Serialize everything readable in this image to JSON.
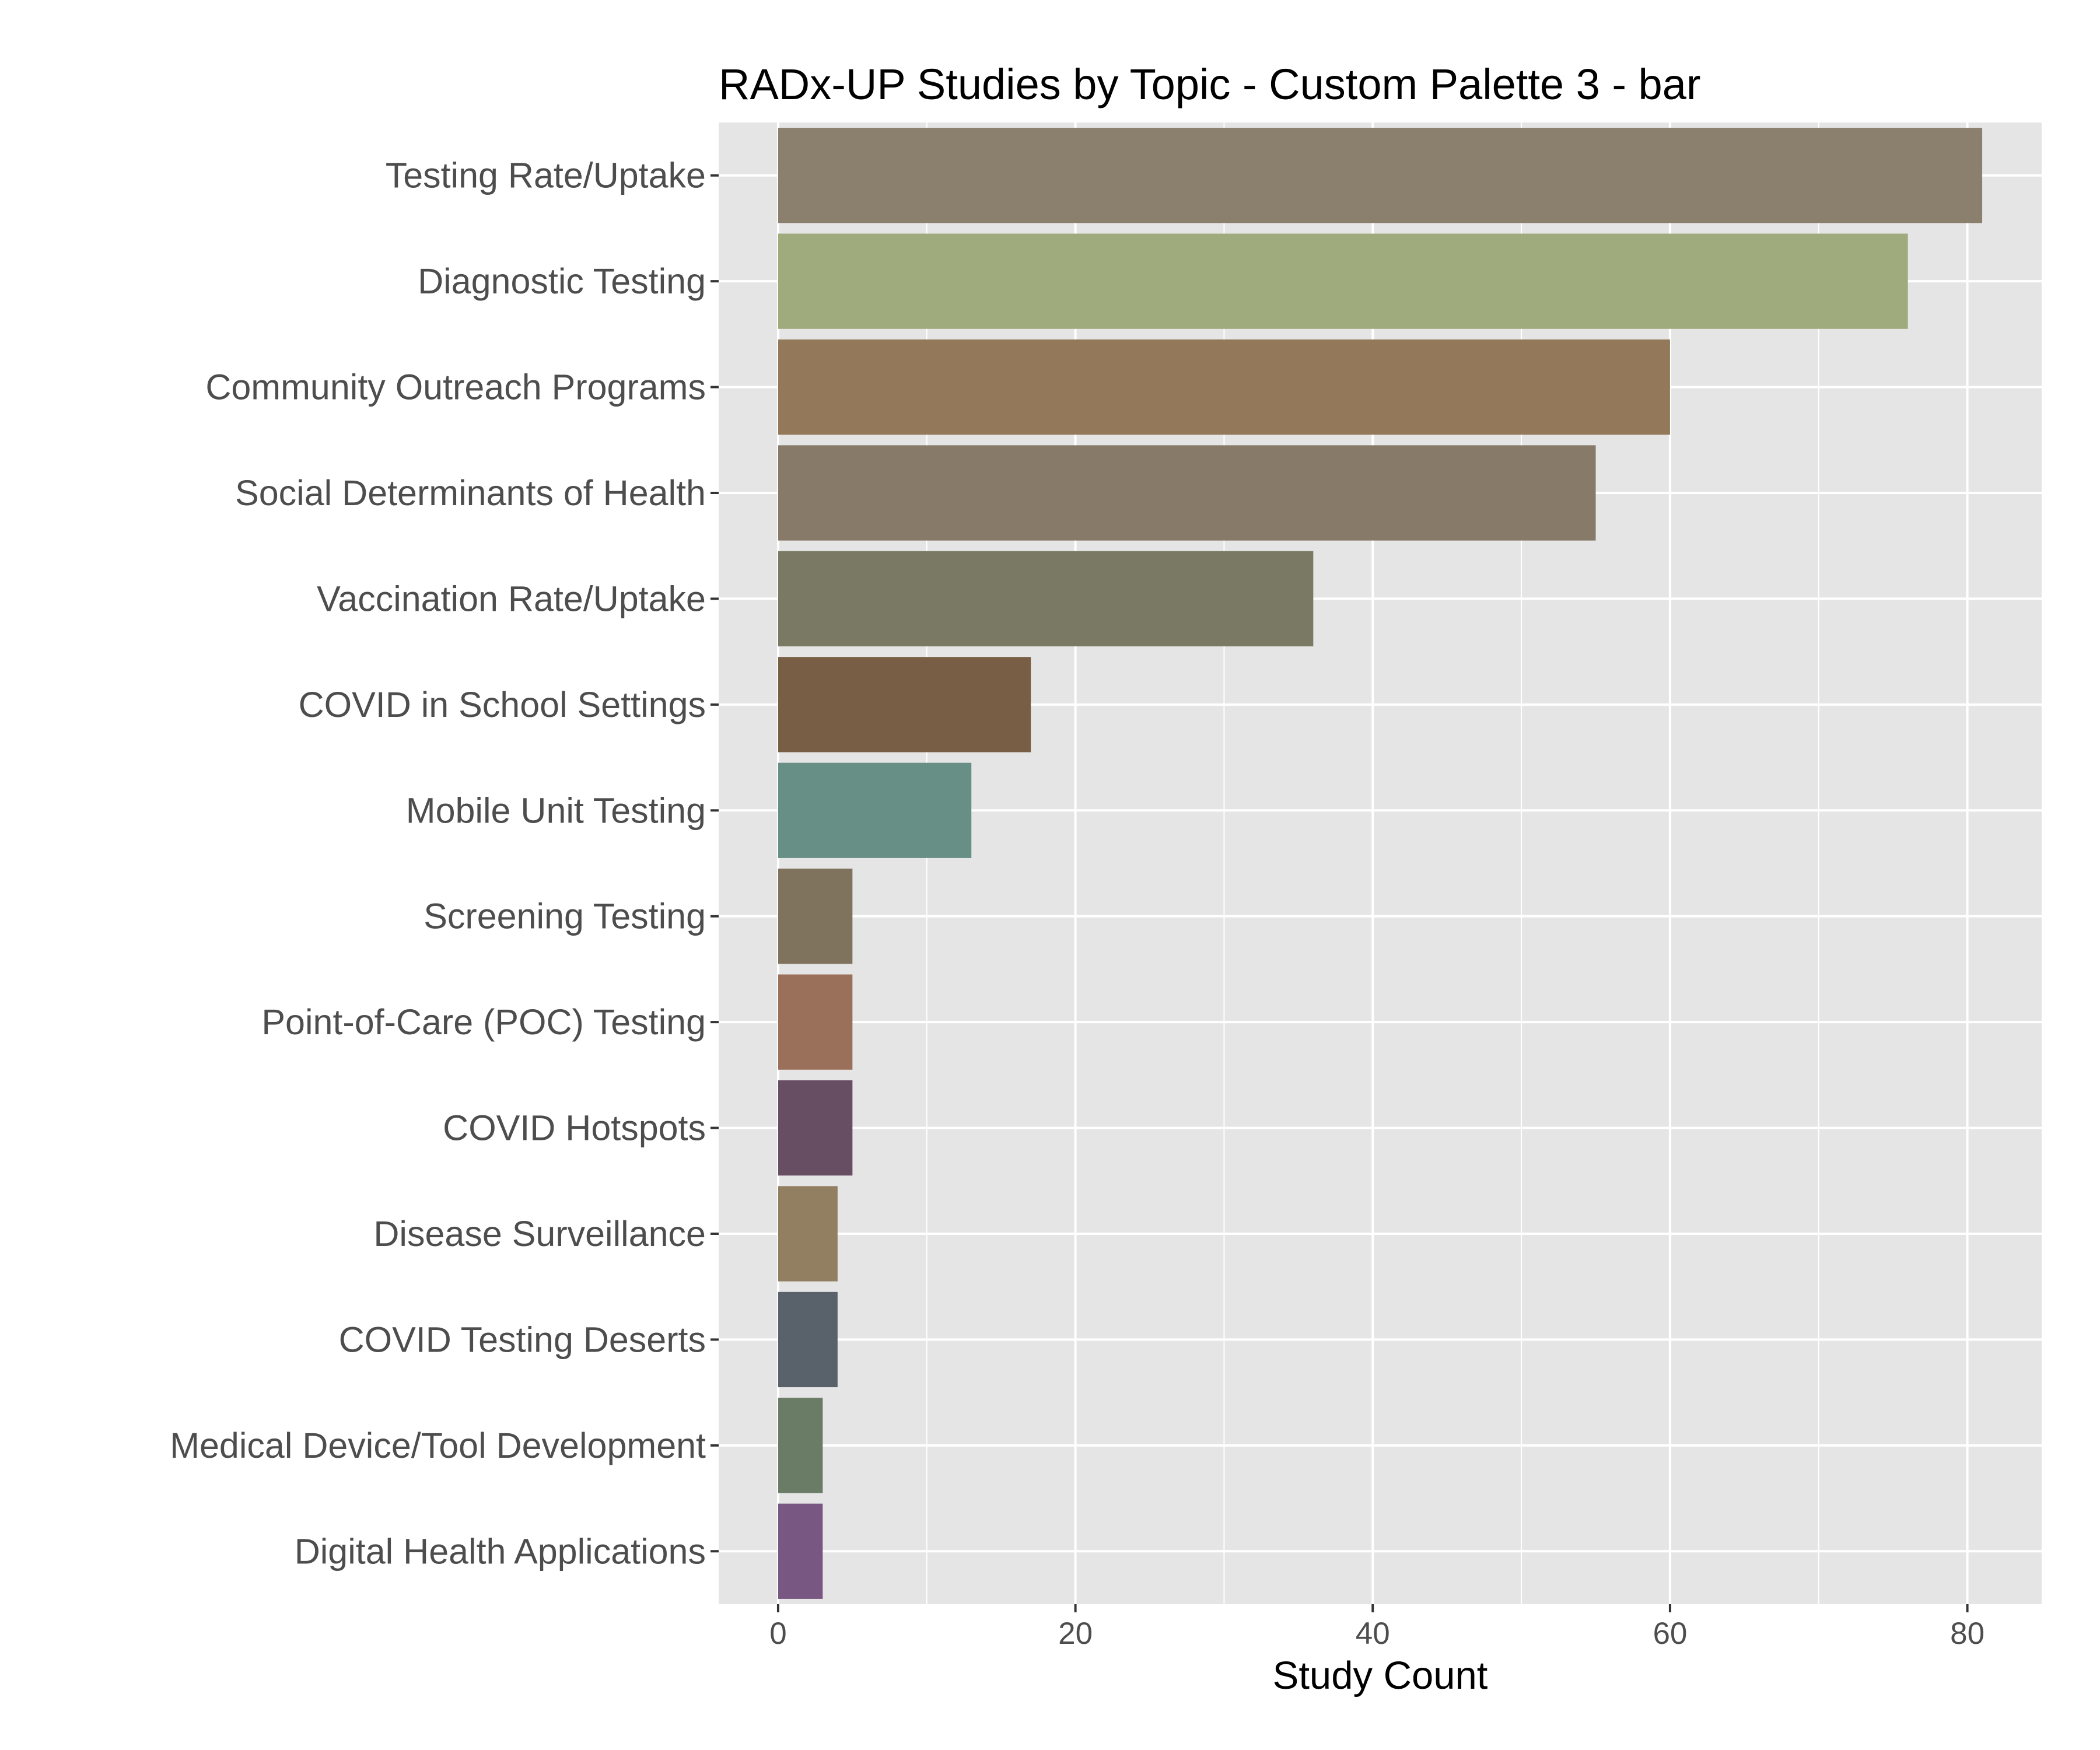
{
  "chart_data": {
    "type": "bar",
    "orientation": "horizontal",
    "title": "RADx-UP Studies by Topic - Custom Palette 3 - bar",
    "xlabel": "Study Count",
    "ylabel": "",
    "xlim": [
      -4,
      85
    ],
    "xticks": [
      0,
      20,
      40,
      60,
      80
    ],
    "grid": true,
    "legend": "none",
    "background": "#e5e5e5",
    "categories": [
      "Testing Rate/Uptake",
      "Diagnostic Testing",
      "Community Outreach Programs",
      "Social Determinants of Health",
      "Vaccination Rate/Uptake",
      "COVID in School Settings",
      "Mobile Unit Testing",
      "Screening Testing",
      "Point-of-Care (POC) Testing",
      "COVID Hotspots",
      "Disease Surveillance",
      "COVID Testing Deserts",
      "Medical Device/Tool Development",
      "Digital Health Applications"
    ],
    "values": [
      81,
      76,
      60,
      55,
      36,
      17,
      13,
      5,
      5,
      5,
      4,
      4,
      3,
      3
    ],
    "colors": [
      "#8b806d",
      "#9faa7d",
      "#93795a",
      "#877a69",
      "#7a7a64",
      "#785e45",
      "#688f86",
      "#80735e",
      "#9b705b",
      "#674e62",
      "#927f62",
      "#59616a",
      "#6a7b66",
      "#795783"
    ]
  }
}
